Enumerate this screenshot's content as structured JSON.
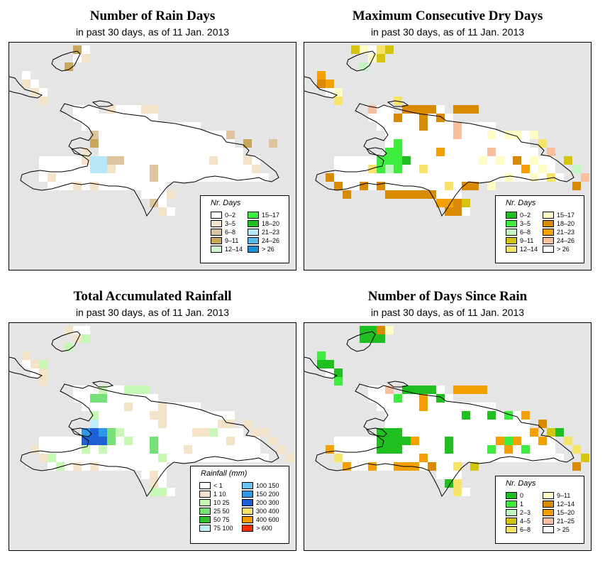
{
  "panels": [
    {
      "title": "Number of Rain Days",
      "subtitle": "in past 30 days, as of  11 Jan. 2013",
      "legend": {
        "title": "Nr. Days",
        "items": [
          {
            "label": "0–2",
            "color": "#ffffff"
          },
          {
            "label": "3–5",
            "color": "#f3e3c8"
          },
          {
            "label": "6–8",
            "color": "#dcc59e"
          },
          {
            "label": "9–11",
            "color": "#c9a75a"
          },
          {
            "label": "12–14",
            "color": "#ccfacc"
          },
          {
            "label": "15–17",
            "color": "#3ded3d"
          },
          {
            "label": "18–20",
            "color": "#1fbf1f"
          },
          {
            "label": "21–23",
            "color": "#b6e6f6"
          },
          {
            "label": "24–26",
            "color": "#5ab9ec"
          },
          {
            "label": "> 26",
            "color": "#1b8fd6"
          }
        ]
      }
    },
    {
      "title": "Maximum Consecutive Dry Days",
      "subtitle": "in past 30 days, as of  11 Jan. 2013",
      "legend": {
        "title": "Nr. Days",
        "items": [
          {
            "label": "0–2",
            "color": "#1fbf1f"
          },
          {
            "label": "3–5",
            "color": "#3ded3d"
          },
          {
            "label": "6–8",
            "color": "#c2f5c2"
          },
          {
            "label": "9–11",
            "color": "#d4c50c"
          },
          {
            "label": "12–14",
            "color": "#f6e36a"
          },
          {
            "label": "15–17",
            "color": "#fffcc6"
          },
          {
            "label": "18–20",
            "color": "#d98a00"
          },
          {
            "label": "21–23",
            "color": "#f3a000"
          },
          {
            "label": "24–26",
            "color": "#f7c0a0"
          },
          {
            "label": "> 26",
            "color": "#ffffff"
          }
        ]
      }
    },
    {
      "title": "Total Accumulated Rainfall",
      "subtitle": "in past 30 days, as of  11 Jan. 2013",
      "legend": {
        "title": "Rainfall (mm)",
        "items": [
          {
            "label": "< 1",
            "color": "#ffffff"
          },
          {
            "label": "1   10",
            "color": "#f3e3c8"
          },
          {
            "label": "10   25",
            "color": "#c6f7b4"
          },
          {
            "label": "25   50",
            "color": "#76e176"
          },
          {
            "label": "50   75",
            "color": "#2fc02f"
          },
          {
            "label": "75  100",
            "color": "#bfeef8"
          },
          {
            "label": "100  150",
            "color": "#6bc3f1"
          },
          {
            "label": "150  200",
            "color": "#2f98e6"
          },
          {
            "label": "200  300",
            "color": "#1f5fd8"
          },
          {
            "label": "300  400",
            "color": "#f6e36a"
          },
          {
            "label": "400  600",
            "color": "#f39a00"
          },
          {
            "label": "> 600",
            "color": "#ff3000"
          }
        ]
      }
    },
    {
      "title": "Number of Days Since Rain",
      "subtitle": "in past 30 days, as of  11 Jan. 2013",
      "legend": {
        "title": "Nr. Days",
        "items": [
          {
            "label": "0",
            "color": "#1fbf1f"
          },
          {
            "label": "1",
            "color": "#3ded3d"
          },
          {
            "label": "2–3",
            "color": "#c2f5c2"
          },
          {
            "label": "4–5",
            "color": "#d4c50c"
          },
          {
            "label": "6–8",
            "color": "#f6e36a"
          },
          {
            "label": "9–11",
            "color": "#fffcc6"
          },
          {
            "label": "12–14",
            "color": "#d98a00"
          },
          {
            "label": "15–20",
            "color": "#f3a000"
          },
          {
            "label": "21–25",
            "color": "#f7c0a0"
          },
          {
            "label": "> 25",
            "color": "#ffffff"
          }
        ]
      }
    }
  ]
}
